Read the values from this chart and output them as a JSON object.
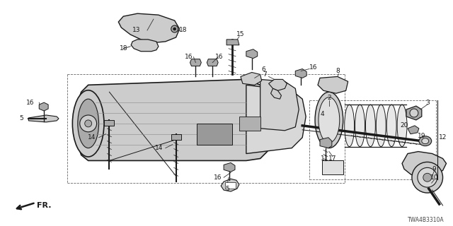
{
  "diagram_code": "TWA4B3310A",
  "bg": "#ffffff",
  "fg": "#1a1a1a",
  "gray1": "#aaaaaa",
  "gray2": "#cccccc",
  "gray3": "#888888",
  "fw": 6.4,
  "fh": 3.2,
  "dpi": 100
}
